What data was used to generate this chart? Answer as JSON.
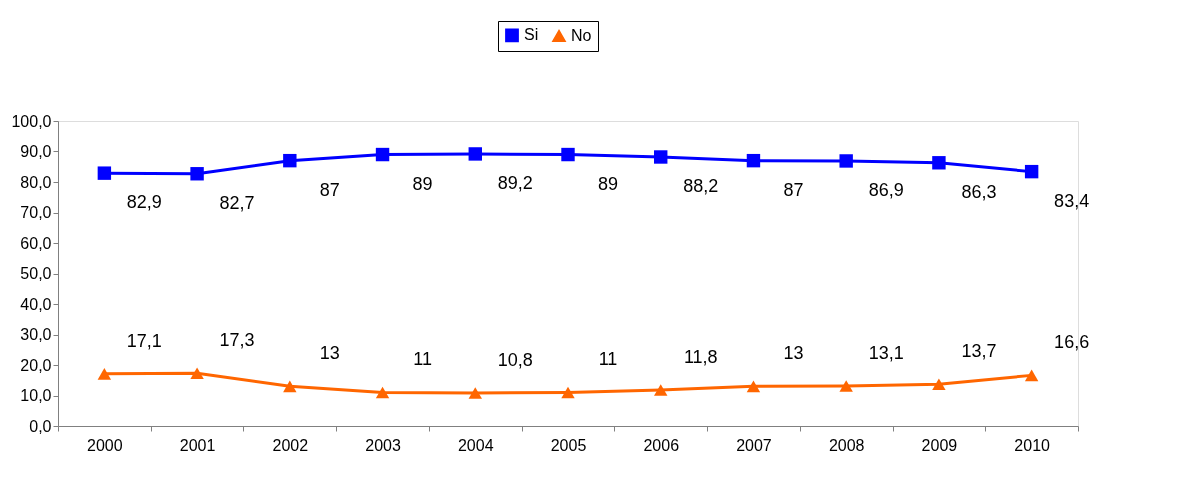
{
  "chart_data": {
    "type": "line",
    "categories": [
      "2000",
      "2001",
      "2002",
      "2003",
      "2004",
      "2005",
      "2006",
      "2007",
      "2008",
      "2009",
      "2010"
    ],
    "series": [
      {
        "name": "Si",
        "color": "#0000ff",
        "marker": "square",
        "values": [
          82.9,
          82.7,
          87,
          89,
          89.2,
          89,
          88.2,
          87,
          86.9,
          86.3,
          83.4
        ],
        "value_labels": [
          "82,9",
          "82,7",
          "87",
          "89",
          "89,2",
          "89",
          "88,2",
          "87",
          "86,9",
          "86,3",
          "83,4"
        ]
      },
      {
        "name": "No",
        "color": "#ff6600",
        "marker": "triangle",
        "values": [
          17.1,
          17.3,
          13,
          11,
          10.8,
          11,
          11.8,
          13,
          13.1,
          13.7,
          16.6
        ],
        "value_labels": [
          "17,1",
          "17,3",
          "13",
          "11",
          "10,8",
          "11",
          "11,8",
          "13",
          "13,1",
          "13,7",
          "16,6"
        ]
      }
    ],
    "ylim": [
      0,
      100
    ],
    "yticks": [
      {
        "value": 0,
        "label": "0,0"
      },
      {
        "value": 10,
        "label": "10,0"
      },
      {
        "value": 20,
        "label": "20,0"
      },
      {
        "value": 30,
        "label": "30,0"
      },
      {
        "value": 40,
        "label": "40,0"
      },
      {
        "value": 50,
        "label": "50,0"
      },
      {
        "value": 60,
        "label": "60,0"
      },
      {
        "value": 70,
        "label": "70,0"
      },
      {
        "value": 80,
        "label": "80,0"
      },
      {
        "value": 90,
        "label": "90,0"
      },
      {
        "value": 100,
        "label": "100,0"
      }
    ],
    "grid": false,
    "legend": "top",
    "line_style": "solid"
  }
}
